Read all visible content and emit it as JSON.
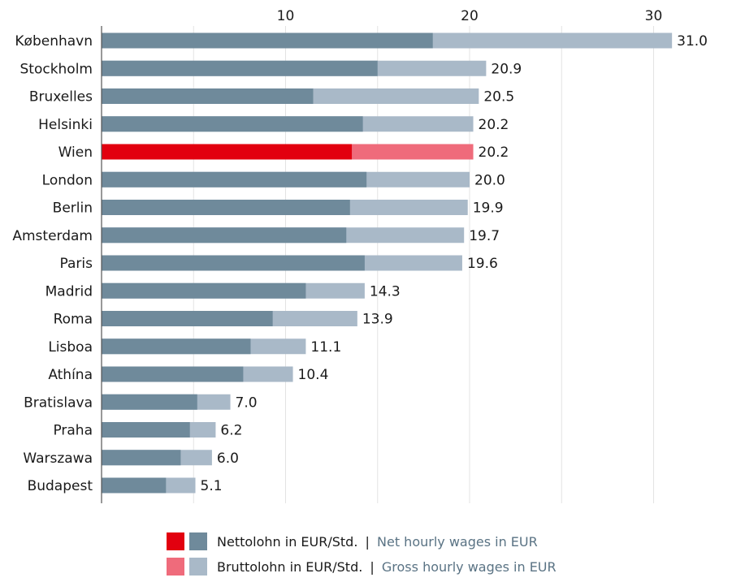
{
  "colors": {
    "net": "#6f8a9b",
    "gross": "#a9b9c8",
    "highlight_net": "#e2000f",
    "highlight_gross": "#ef6b7b",
    "grid": "#e3e3e3",
    "axis": "#555555",
    "text": "#1a1a1a"
  },
  "chart_data": {
    "type": "bar",
    "orientation": "horizontal",
    "stacked": "overlay",
    "xlim": [
      0,
      34
    ],
    "x_ticks": [
      "10",
      "20",
      "30"
    ],
    "x_tick_values": [
      10,
      20,
      30
    ],
    "x_axis_position": "top",
    "grid": true,
    "highlight_category": "Wien",
    "categories": [
      "København",
      "Stockholm",
      "Bruxelles",
      "Helsinki",
      "Wien",
      "London",
      "Berlin",
      "Amsterdam",
      "Paris",
      "Madrid",
      "Roma",
      "Lisboa",
      "Athína",
      "Bratislava",
      "Praha",
      "Warszawa",
      "Budapest"
    ],
    "series": [
      {
        "name": "Nettolohn in EUR/Std. | Net hourly wages in EUR",
        "values": [
          18.0,
          15.0,
          11.5,
          14.2,
          13.6,
          14.4,
          13.5,
          13.3,
          14.3,
          11.1,
          9.3,
          8.1,
          7.7,
          5.2,
          4.8,
          4.3,
          3.5
        ]
      },
      {
        "name": "Bruttolohn in EUR/Std. | Gross hourly wages in EUR",
        "values": [
          31.0,
          20.9,
          20.5,
          20.2,
          20.2,
          20.0,
          19.9,
          19.7,
          19.6,
          14.3,
          13.9,
          11.1,
          10.4,
          7.0,
          6.2,
          6.0,
          5.1
        ]
      }
    ],
    "value_labels": [
      "31.0",
      "20.9",
      "20.5",
      "20.2",
      "20.2",
      "20.0",
      "19.9",
      "19.7",
      "19.6",
      "14.3",
      "13.9",
      "11.1",
      "10.4",
      "7.0",
      "6.2",
      "6.0",
      "5.1"
    ]
  },
  "legend": {
    "items": [
      {
        "de": "Nettolohn in EUR/Std.",
        "sep": "|",
        "en": "Net hourly wages in EUR",
        "swatch_highlight": "#e2000f",
        "swatch": "#6f8a9b"
      },
      {
        "de": "Bruttolohn in EUR/Std.",
        "sep": "|",
        "en": "Gross hourly wages in EUR",
        "swatch_highlight": "#ef6b7b",
        "swatch": "#a9b9c8"
      }
    ]
  }
}
